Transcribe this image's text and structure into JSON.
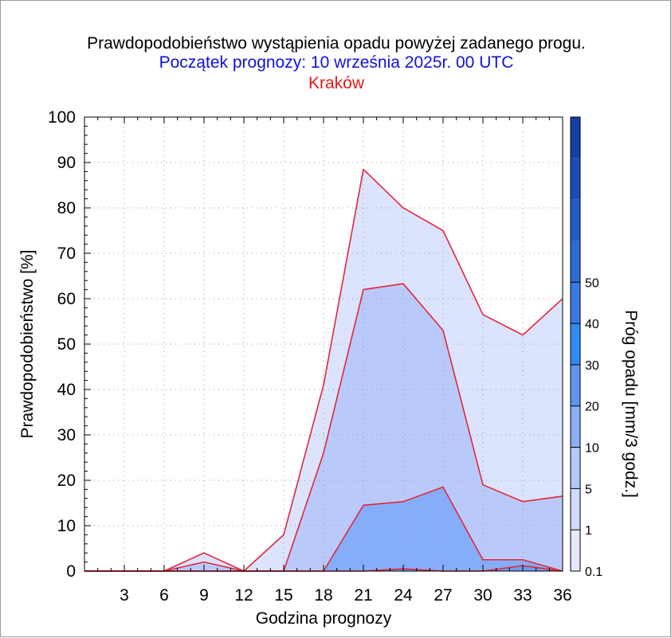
{
  "chart_data": {
    "type": "area",
    "title": "Prawdopodobieństwo wystąpienia opadu powyżej zadanego progu.",
    "subtitle": "Początek prognozy: 10 września 2025r. 00 UTC",
    "location": "Kraków",
    "xlabel": "Godzina prognozy",
    "ylabel": "Prawdopodobieństwo [%]",
    "colorbar_label": "Próg opadu [mm/3 godz.]",
    "xlim": [
      0,
      36
    ],
    "ylim": [
      0,
      100
    ],
    "x_ticks": [
      3,
      6,
      9,
      12,
      15,
      18,
      21,
      24,
      27,
      30,
      33,
      36
    ],
    "y_ticks": [
      0,
      10,
      20,
      30,
      40,
      50,
      60,
      70,
      80,
      90,
      100
    ],
    "grid": true,
    "x": [
      0,
      3,
      6,
      9,
      12,
      15,
      18,
      21,
      24,
      27,
      30,
      33,
      36
    ],
    "series": [
      {
        "threshold": "0.1",
        "color": "#dce3fc",
        "values": [
          0,
          0,
          0,
          4,
          0,
          8,
          41,
          88.5,
          80,
          75,
          56.5,
          52,
          60
        ]
      },
      {
        "threshold": "1",
        "color": "#b9cafa",
        "values": [
          0,
          0,
          0,
          2,
          0,
          0,
          26,
          62,
          63.3,
          53,
          19,
          15.3,
          16.5
        ]
      },
      {
        "threshold": "5",
        "color": "#86adfa",
        "values": [
          0,
          0,
          0,
          0,
          0,
          0,
          0,
          14.5,
          15.3,
          18.5,
          2.5,
          2.5,
          0
        ]
      },
      {
        "threshold": "10",
        "color": "#6d9bf2",
        "values": [
          0,
          0,
          0,
          0,
          0,
          0,
          0,
          0,
          0.5,
          0,
          0,
          1.2,
          0
        ]
      }
    ],
    "colorbar": {
      "tick_labels": [
        "0.1",
        "1",
        "5",
        "10",
        "20",
        "30",
        "40",
        "50"
      ],
      "colors": [
        "#e4e9fd",
        "#cfdcfb",
        "#b3c9f8",
        "#8ab0f5",
        "#5e95ef",
        "#2f8cf5",
        "#3a7ae6",
        "#2f6bd6",
        "#245cc8",
        "#1b4db8",
        "#1540a8"
      ]
    },
    "line_color": "#e3273b"
  }
}
